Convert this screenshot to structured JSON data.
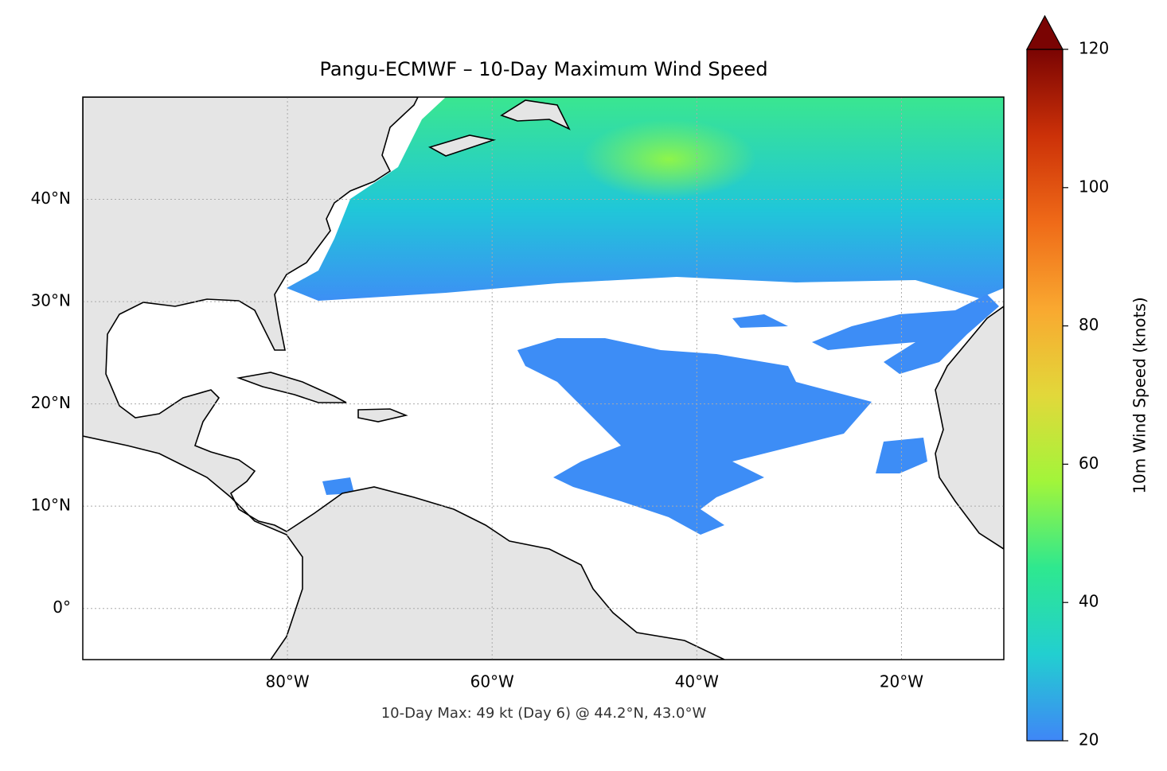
{
  "chart_data": {
    "type": "map",
    "title": "Pangu-ECMWF – 10-Day Maximum Wind Speed",
    "annotation": "10-Day Max: 49 kt (Day 6) @ 44.2°N, 43.0°W",
    "xlim": [
      -100,
      -10
    ],
    "ylim": [
      -5,
      50
    ],
    "xticks": [
      {
        "value": -80,
        "label": "80°W"
      },
      {
        "value": -60,
        "label": "60°W"
      },
      {
        "value": -40,
        "label": "40°W"
      },
      {
        "value": -20,
        "label": "20°W"
      }
    ],
    "yticks": [
      {
        "value": 0,
        "label": "0°"
      },
      {
        "value": 10,
        "label": "10°N"
      },
      {
        "value": 20,
        "label": "20°N"
      },
      {
        "value": 30,
        "label": "30°N"
      },
      {
        "value": 40,
        "label": "40°N"
      }
    ],
    "grid": true,
    "colorbar": {
      "label": "10m Wind Speed (knots)",
      "lim": [
        20,
        120
      ],
      "ticks": [
        20,
        40,
        60,
        80,
        100,
        120
      ],
      "colors": [
        "#3f86f7",
        "#22cfd0",
        "#2ee88f",
        "#a2f53a",
        "#e2d83a",
        "#f9a830",
        "#ef6a18",
        "#cc3108",
        "#7a0403"
      ]
    }
  }
}
